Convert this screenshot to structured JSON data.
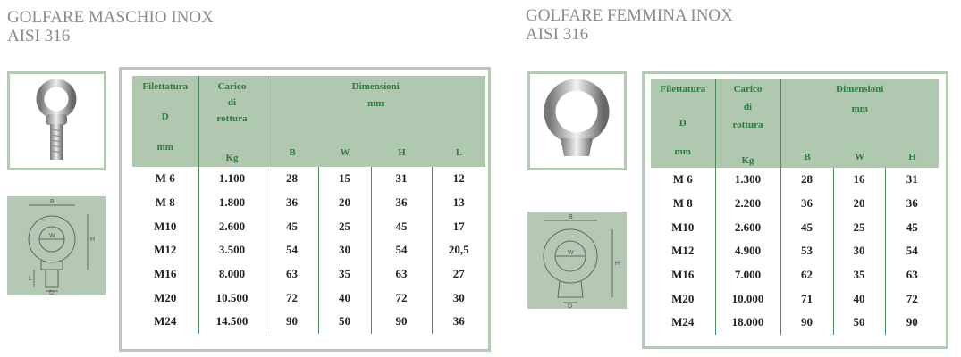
{
  "male": {
    "title_line1": "GOLFARE MASCHIO INOX",
    "title_line2": "AISI 316",
    "photo_icon": "eye-bolt-photo",
    "diagram_icon": "eye-bolt-diagram",
    "diagram_labels": [
      "B",
      "W",
      "H",
      "L",
      "D"
    ],
    "headers": {
      "filettatura": "Filettatura",
      "d": "D",
      "d_unit": "mm",
      "carico": "Carico",
      "di": "di",
      "rottura": "rottura",
      "carico_unit": "Kg",
      "dimensioni": "Dimensioni",
      "dim_unit": "mm",
      "cols": [
        "B",
        "W",
        "H",
        "L"
      ]
    },
    "rows": [
      [
        "M 6",
        "1.100",
        "28",
        "15",
        "31",
        "12"
      ],
      [
        "M 8",
        "1.800",
        "36",
        "20",
        "36",
        "13"
      ],
      [
        "M10",
        "2.600",
        "45",
        "25",
        "45",
        "17"
      ],
      [
        "M12",
        "3.500",
        "54",
        "30",
        "54",
        "20,5"
      ],
      [
        "M16",
        "8.000",
        "63",
        "35",
        "63",
        "27"
      ],
      [
        "M20",
        "10.500",
        "72",
        "40",
        "72",
        "30"
      ],
      [
        "M24",
        "14.500",
        "90",
        "50",
        "90",
        "36"
      ]
    ]
  },
  "female": {
    "title_line1": "GOLFARE FEMMINA INOX",
    "title_line2": "AISI 316",
    "photo_icon": "eye-nut-photo",
    "diagram_icon": "eye-nut-diagram",
    "diagram_labels": [
      "B",
      "W",
      "H",
      "D"
    ],
    "headers": {
      "filettatura": "Filettatura",
      "d": "D",
      "d_unit": "mm",
      "carico": "Carico",
      "di": "di",
      "rottura": "rottura",
      "carico_unit": "Kg",
      "dimensioni": "Dimensioni",
      "dim_unit": "mm",
      "cols": [
        "B",
        "W",
        "H"
      ]
    },
    "rows": [
      [
        "M 6",
        "1.300",
        "28",
        "16",
        "31"
      ],
      [
        "M 8",
        "2.200",
        "36",
        "20",
        "36"
      ],
      [
        "M10",
        "2.600",
        "45",
        "25",
        "45"
      ],
      [
        "M12",
        "4.900",
        "53",
        "30",
        "54"
      ],
      [
        "M16",
        "7.000",
        "62",
        "35",
        "63"
      ],
      [
        "M20",
        "10.000",
        "71",
        "40",
        "72"
      ],
      [
        "M24",
        "18.000",
        "90",
        "50",
        "90"
      ]
    ]
  },
  "colors": {
    "frame": "#b5c9b5",
    "header_bg": "#b0c8b0",
    "header_text": "#2f7a3c",
    "title": "#8a8a8a"
  }
}
